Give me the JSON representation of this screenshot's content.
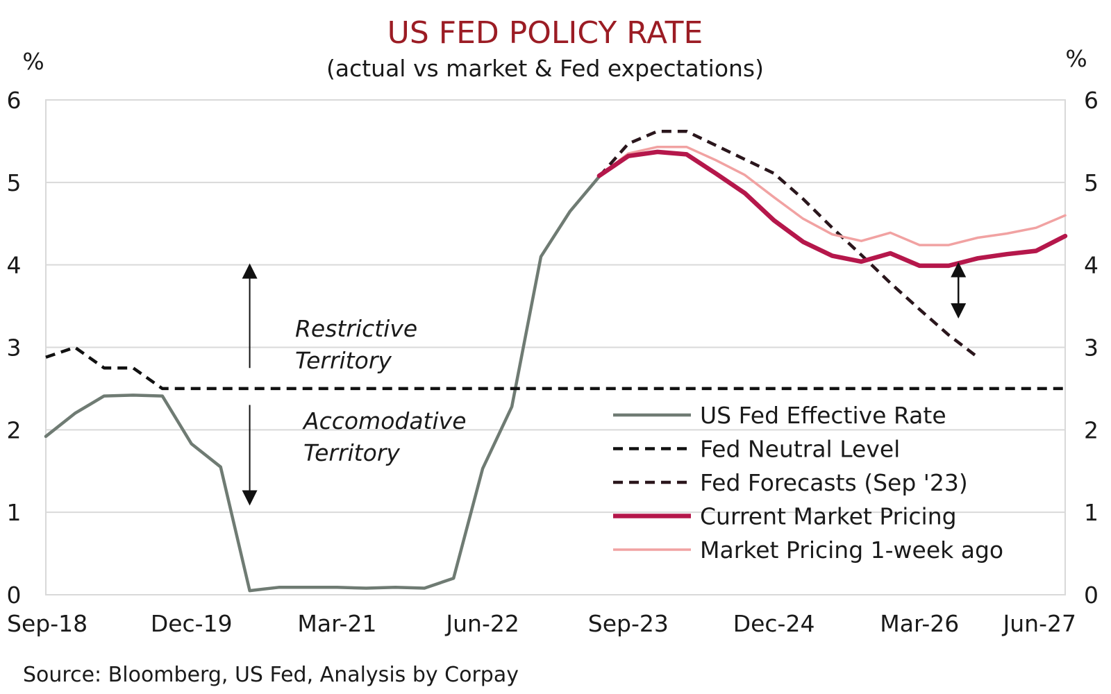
{
  "chart_data": {
    "type": "line",
    "title": "US FED POLICY RATE",
    "subtitle": "(actual vs market & Fed expectations)",
    "y_unit_left": "%",
    "y_unit_right": "%",
    "ylim": [
      0,
      6
    ],
    "yticks": [
      0,
      1,
      2,
      3,
      4,
      5,
      6
    ],
    "grid": true,
    "x_start": "2018-09",
    "x_end": "2027-06",
    "xticks": [
      {
        "date": "2018-09",
        "label": "Sep-18"
      },
      {
        "date": "2019-12",
        "label": "Dec-19"
      },
      {
        "date": "2021-03",
        "label": "Mar-21"
      },
      {
        "date": "2022-06",
        "label": "Jun-22"
      },
      {
        "date": "2023-09",
        "label": "Sep-23"
      },
      {
        "date": "2024-12",
        "label": "Dec-24"
      },
      {
        "date": "2026-03",
        "label": "Mar-26"
      },
      {
        "date": "2027-06",
        "label": "Jun-27"
      }
    ],
    "legend_position": "bottom-right",
    "series": [
      {
        "name": "US Fed Effective Rate",
        "color": "#6f7b73",
        "style": "solid",
        "points": [
          [
            "2018-09",
            1.92
          ],
          [
            "2018-12",
            2.2
          ],
          [
            "2019-03",
            2.41
          ],
          [
            "2019-06",
            2.42
          ],
          [
            "2019-09",
            2.41
          ],
          [
            "2019-12",
            1.83
          ],
          [
            "2020-03",
            1.55
          ],
          [
            "2020-06",
            0.05
          ],
          [
            "2020-09",
            0.09
          ],
          [
            "2020-12",
            0.09
          ],
          [
            "2021-03",
            0.09
          ],
          [
            "2021-06",
            0.08
          ],
          [
            "2021-09",
            0.09
          ],
          [
            "2021-12",
            0.08
          ],
          [
            "2022-03",
            0.2
          ],
          [
            "2022-06",
            1.53
          ],
          [
            "2022-09",
            2.28
          ],
          [
            "2022-12",
            4.1
          ],
          [
            "2023-03",
            4.65
          ],
          [
            "2023-06",
            5.07
          ]
        ]
      },
      {
        "name": "Fed Neutral Level",
        "color": "#111111",
        "style": "dashed",
        "points": [
          [
            "2018-09",
            2.88
          ],
          [
            "2018-12",
            3.0
          ],
          [
            "2019-03",
            2.75
          ],
          [
            "2019-06",
            2.75
          ],
          [
            "2019-09",
            2.5
          ],
          [
            "2027-06",
            2.5
          ]
        ]
      },
      {
        "name": "Fed Forecasts (Sep '23)",
        "color": "#2a161c",
        "style": "dashed",
        "points": [
          [
            "2023-06",
            5.07
          ],
          [
            "2023-09",
            5.47
          ],
          [
            "2023-12",
            5.62
          ],
          [
            "2024-03",
            5.62
          ],
          [
            "2024-06",
            5.45
          ],
          [
            "2024-09",
            5.28
          ],
          [
            "2024-12",
            5.11
          ],
          [
            "2025-03",
            4.8
          ],
          [
            "2025-06",
            4.45
          ],
          [
            "2025-09",
            4.12
          ],
          [
            "2025-12",
            3.78
          ],
          [
            "2026-03",
            3.46
          ],
          [
            "2026-06",
            3.15
          ],
          [
            "2026-09",
            2.88
          ]
        ]
      },
      {
        "name": "Current Market Pricing",
        "color": "#b5174b",
        "style": "solid",
        "points": [
          [
            "2023-06",
            5.08
          ],
          [
            "2023-09",
            5.32
          ],
          [
            "2023-12",
            5.37
          ],
          [
            "2024-03",
            5.34
          ],
          [
            "2024-06",
            5.11
          ],
          [
            "2024-09",
            4.87
          ],
          [
            "2024-12",
            4.54
          ],
          [
            "2025-03",
            4.28
          ],
          [
            "2025-06",
            4.11
          ],
          [
            "2025-09",
            4.04
          ],
          [
            "2025-12",
            4.14
          ],
          [
            "2026-03",
            3.99
          ],
          [
            "2026-06",
            3.99
          ],
          [
            "2026-09",
            4.08
          ],
          [
            "2026-12",
            4.13
          ],
          [
            "2027-03",
            4.17
          ],
          [
            "2027-06",
            4.35
          ]
        ]
      },
      {
        "name": "Market Pricing 1-week ago",
        "color": "#f1a2a2",
        "style": "solid",
        "points": [
          [
            "2023-06",
            5.08
          ],
          [
            "2023-09",
            5.35
          ],
          [
            "2023-12",
            5.43
          ],
          [
            "2024-03",
            5.43
          ],
          [
            "2024-06",
            5.27
          ],
          [
            "2024-09",
            5.09
          ],
          [
            "2024-12",
            4.82
          ],
          [
            "2025-03",
            4.56
          ],
          [
            "2025-06",
            4.37
          ],
          [
            "2025-09",
            4.29
          ],
          [
            "2025-12",
            4.39
          ],
          [
            "2026-03",
            4.24
          ],
          [
            "2026-06",
            4.24
          ],
          [
            "2026-09",
            4.33
          ],
          [
            "2026-12",
            4.38
          ],
          [
            "2027-03",
            4.45
          ],
          [
            "2027-06",
            4.6
          ]
        ]
      }
    ],
    "annotations": {
      "restrictive_line1": "Restrictive",
      "restrictive_line2": "Territory",
      "accommodative_line1": "Accomodative",
      "accommodative_line2": "Territory",
      "range_arrow": {
        "date": "2020-06",
        "y_top": 4.0,
        "y_bottom": 1.1,
        "y_break_high": 2.75,
        "y_break_low": 2.47
      },
      "gap_arrow": {
        "date": "2026-06",
        "y_top": 4.0,
        "y_bottom": 3.3
      }
    },
    "source": "Source: Bloomberg, US Fed, Analysis by Corpay"
  }
}
